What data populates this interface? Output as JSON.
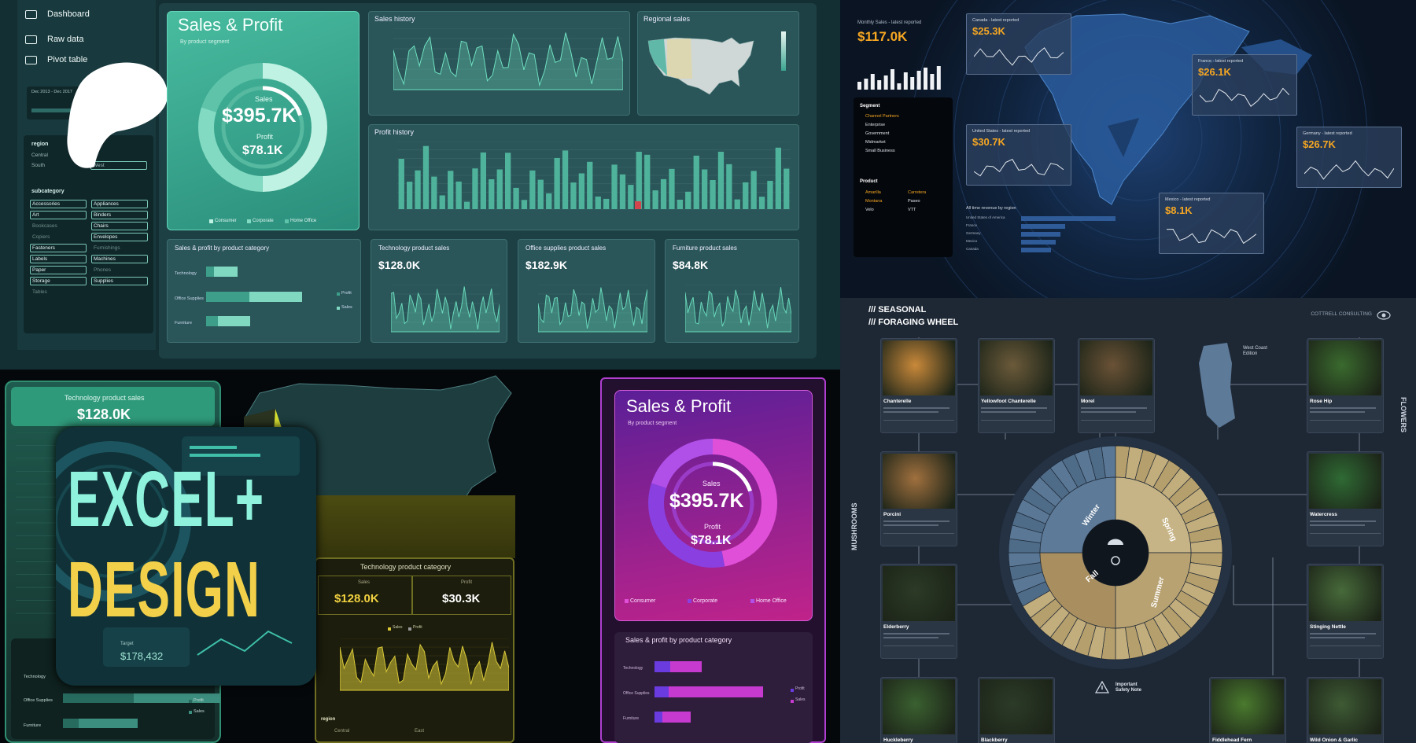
{
  "teal_dashboard": {
    "nav": [
      "Dashboard",
      "Raw data",
      "Pivot table"
    ],
    "timeline": "Dec 2013 - Dec 2017",
    "region_filter": {
      "title": "region",
      "items": [
        "Central",
        "South",
        "West"
      ]
    },
    "subcategory_filter": {
      "title": "subcategory",
      "items": [
        "Accessories",
        "Appliances",
        "Art",
        "Binders",
        "Bookcases",
        "Chairs",
        "Copiers",
        "Envelopes",
        "Fasteners",
        "Furnishings",
        "Labels",
        "Machines",
        "Paper",
        "Phones",
        "Storage",
        "Supplies",
        "Tables"
      ]
    },
    "sales_profit": {
      "title": "Sales & Profit",
      "subtitle": "By product segment",
      "sales_label": "Sales",
      "sales_value": "$395.7K",
      "profit_label": "Profit",
      "profit_value": "$78.1K",
      "legend": [
        "Consumer",
        "Corporate",
        "Home Office"
      ]
    },
    "sales_history": "Sales history",
    "regional_sales": "Regional sales",
    "profit_history": "Profit history",
    "category_chart": {
      "title": "Sales & profit by product category",
      "categories": [
        "Technology",
        "Office Supplies",
        "Furniture"
      ],
      "legend": [
        "Profit",
        "Sales"
      ]
    },
    "kpis": [
      {
        "title": "Technology product sales",
        "value": "$128.0K"
      },
      {
        "title": "Office supplies product sales",
        "value": "$182.9K"
      },
      {
        "title": "Furniture product sales",
        "value": "$84.8K"
      }
    ]
  },
  "map_dashboard": {
    "monthly_label": "Monthly Sales - latest reported",
    "monthly_value": "$117.0K",
    "segment_slicer": {
      "title": "Segment",
      "items": [
        "Channel Partners",
        "Enterprise",
        "Government",
        "Midmarket",
        "Small Business"
      ]
    },
    "product_slicer": {
      "title": "Product",
      "items": [
        "Amarilla",
        "Carretera",
        "Montana",
        "Paseo",
        "Velo",
        "VTT"
      ]
    },
    "countries": [
      {
        "label": "Canada - latest reported",
        "value": "$25.3K"
      },
      {
        "label": "France - latest reported",
        "value": "$26.1K"
      },
      {
        "label": "United States - latest reported",
        "value": "$30.7K"
      },
      {
        "label": "Germany - latest reported",
        "value": "$26.7K"
      },
      {
        "label": "Mexico - latest reported",
        "value": "$8.1K"
      }
    ],
    "revenue": {
      "title": "All time revenue by region",
      "items": [
        "United States of America",
        "France",
        "Germany",
        "Mexico",
        "Canada"
      ]
    }
  },
  "green_dashboard": {
    "kpi": {
      "title": "Technology product sales",
      "value": "$128.0K"
    },
    "logo": [
      "EXCEL+",
      "DESIGN"
    ],
    "target": {
      "label": "Target",
      "value": "$178,432"
    },
    "category_card": {
      "title": "Technology product category",
      "sales_label": "Sales",
      "sales_value": "$128.0K",
      "profit_label": "Profit",
      "profit_value": "$30.3K",
      "legend": [
        "Sales",
        "Profit"
      ]
    },
    "region_filter": {
      "title": "region",
      "items": [
        "Central",
        "East"
      ]
    },
    "categories": [
      "Technology",
      "Office Supplies",
      "Furniture"
    ],
    "legend": [
      "Profit",
      "Sales"
    ]
  },
  "purple_dashboard": {
    "title": "Sales & Profit",
    "subtitle": "By product segment",
    "sales_label": "Sales",
    "sales_value": "$395.7K",
    "profit_label": "Profit",
    "profit_value": "$78.1K",
    "legend": [
      "Consumer",
      "Corporate",
      "Home Office"
    ],
    "category_chart": {
      "title": "Sales & profit by product category",
      "categories": [
        "Technology",
        "Office Supplies",
        "Furniture"
      ],
      "legend": [
        "Profit",
        "Sales"
      ]
    }
  },
  "foraging_wheel": {
    "title": [
      "/// SEASONAL",
      "/// FORAGING WHEEL"
    ],
    "brand": "COTTRELL CONSULTING",
    "edition": "West Coast Edition",
    "side_labels": [
      "MUSHROOMS",
      "FLOWERS"
    ],
    "seasons": [
      "Winter",
      "Spring",
      "Fall",
      "Summer"
    ],
    "safety_note": "Important Safety Note",
    "items": [
      "Chanterelle",
      "Yellowfoot Chanterelle",
      "Morel",
      "Rose Hip",
      "Porcini",
      "Watercress",
      "Elderberry",
      "Stinging Nettle",
      "Huckleberry",
      "Blackberry",
      "Fiddlehead Fern",
      "Wild Onion & Garlic"
    ]
  }
}
